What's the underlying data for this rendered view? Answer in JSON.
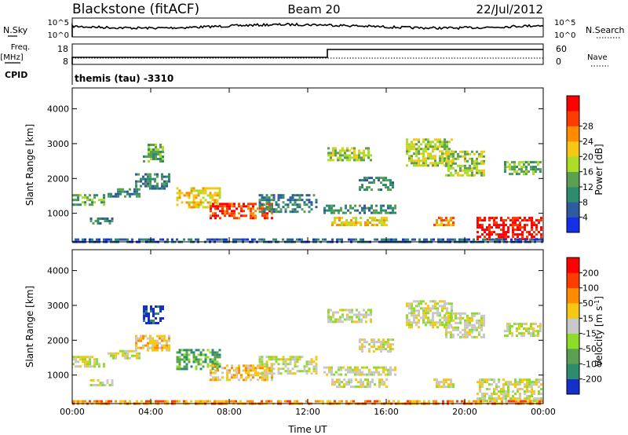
{
  "header": {
    "station": "Blackstone (fitACF)",
    "beam": "Beam 20",
    "date": "22/Jul/2012"
  },
  "noise_panel": {
    "left_label": "N.Sky",
    "right_label": "N.Search",
    "left_ticks": [
      "10^5",
      "10^0"
    ],
    "right_ticks": [
      "10^5",
      "10^0"
    ]
  },
  "freq_panel": {
    "left_label_1": "Freq.",
    "left_label_2": "[MHz]",
    "right_label": "Nave",
    "left_ticks": [
      "18",
      "8"
    ],
    "right_ticks": [
      "60",
      "0"
    ],
    "cpid_label": "CPID",
    "cpid_text": "themis (tau) -3310",
    "freq_step_hour": 13
  },
  "chart_data": [
    {
      "type": "heatmap",
      "ylabel": "Slant Range [km]",
      "xlabel": "Time UT",
      "x_range_hours": [
        0,
        24
      ],
      "y_range_km": [
        180,
        4600
      ],
      "x_tick_labels": [
        "00:00",
        "04:00",
        "08:00",
        "12:00",
        "16:00",
        "20:00",
        "00:00"
      ],
      "y_tick_labels": [
        "1000",
        "2000",
        "3000",
        "4000"
      ],
      "y_ticks_km": [
        1000,
        2000,
        3000,
        4000
      ],
      "colorbar": {
        "label": "Power [dB]",
        "tick_labels": [
          "4",
          "8",
          "12",
          "16",
          "20",
          "24",
          "28"
        ],
        "colors": [
          "#1430e6",
          "#2e5aa0",
          "#2e8c6e",
          "#5aa050",
          "#aadc28",
          "#f5c814",
          "#ff8c00",
          "#ff3c00",
          "#ff0000"
        ]
      },
      "echo_regions": [
        {
          "t0": 0.0,
          "t1": 1.6,
          "r0": 1250,
          "r1": 1550,
          "level": 3
        },
        {
          "t0": 0.9,
          "t1": 2.1,
          "r0": 700,
          "r1": 880,
          "level": 2
        },
        {
          "t0": 1.8,
          "t1": 3.4,
          "r0": 1500,
          "r1": 1720,
          "level": 2
        },
        {
          "t0": 3.2,
          "t1": 5.0,
          "r0": 1700,
          "r1": 2150,
          "level": 2
        },
        {
          "t0": 3.6,
          "t1": 4.6,
          "r0": 2500,
          "r1": 3000,
          "level": 3
        },
        {
          "t0": 5.3,
          "t1": 7.5,
          "r0": 1200,
          "r1": 1750,
          "level": 5
        },
        {
          "t0": 7.0,
          "t1": 10.2,
          "r0": 850,
          "r1": 1300,
          "level": 7
        },
        {
          "t0": 9.5,
          "t1": 12.5,
          "r0": 1050,
          "r1": 1550,
          "level": 2
        },
        {
          "t0": 12.8,
          "t1": 16.5,
          "r0": 1000,
          "r1": 1250,
          "level": 2
        },
        {
          "t0": 13.2,
          "t1": 16.0,
          "r0": 650,
          "r1": 900,
          "level": 5
        },
        {
          "t0": 13.0,
          "t1": 15.2,
          "r0": 2500,
          "r1": 2900,
          "level": 4
        },
        {
          "t0": 14.6,
          "t1": 16.4,
          "r0": 1700,
          "r1": 2050,
          "level": 2
        },
        {
          "t0": 17.0,
          "t1": 19.4,
          "r0": 2400,
          "r1": 3150,
          "level": 4
        },
        {
          "t0": 19.0,
          "t1": 21.0,
          "r0": 2100,
          "r1": 2800,
          "level": 4
        },
        {
          "t0": 18.4,
          "t1": 19.4,
          "r0": 650,
          "r1": 900,
          "level": 6
        },
        {
          "t0": 20.6,
          "t1": 23.9,
          "r0": 250,
          "r1": 900,
          "level": 8
        },
        {
          "t0": 22.0,
          "t1": 23.9,
          "r0": 2150,
          "r1": 2500,
          "level": 3
        },
        {
          "t0": 0.0,
          "t1": 24.0,
          "r0": 180,
          "r1": 280,
          "level": 1
        }
      ]
    },
    {
      "type": "heatmap",
      "ylabel": "Slant Range [km]",
      "xlabel": "Time UT",
      "x_range_hours": [
        0,
        24
      ],
      "y_range_km": [
        180,
        4600
      ],
      "x_tick_labels": [
        "00:00",
        "04:00",
        "08:00",
        "12:00",
        "16:00",
        "20:00",
        "00:00"
      ],
      "y_tick_labels": [
        "1000",
        "2000",
        "3000",
        "4000"
      ],
      "y_ticks_km": [
        1000,
        2000,
        3000,
        4000
      ],
      "colorbar": {
        "label": "Velocity",
        "label_units": "[m s",
        "label_exp": "-1",
        "label_close": "]",
        "tick_labels": [
          "200",
          "100",
          "50",
          "15",
          "-15",
          "-50",
          "-100",
          "-200"
        ],
        "colors": [
          "#1430c8",
          "#2e8c6e",
          "#5aa050",
          "#8cdc28",
          "#c8c8c8",
          "#f5c814",
          "#ff8c00",
          "#ff3c00",
          "#ff0000"
        ]
      },
      "echo_regions": [
        {
          "t0": 0.0,
          "t1": 1.6,
          "r0": 1250,
          "r1": 1550,
          "level": 4
        },
        {
          "t0": 0.9,
          "t1": 2.1,
          "r0": 700,
          "r1": 880,
          "level": 4
        },
        {
          "t0": 1.8,
          "t1": 3.4,
          "r0": 1500,
          "r1": 1720,
          "level": 4
        },
        {
          "t0": 3.2,
          "t1": 5.0,
          "r0": 1700,
          "r1": 2150,
          "level": 5
        },
        {
          "t0": 3.6,
          "t1": 4.6,
          "r0": 2500,
          "r1": 3000,
          "level": 0
        },
        {
          "t0": 5.3,
          "t1": 7.5,
          "r0": 1200,
          "r1": 1750,
          "level": 2
        },
        {
          "t0": 7.0,
          "t1": 10.2,
          "r0": 850,
          "r1": 1300,
          "level": 5
        },
        {
          "t0": 9.5,
          "t1": 12.5,
          "r0": 1050,
          "r1": 1550,
          "level": 4
        },
        {
          "t0": 12.8,
          "t1": 16.5,
          "r0": 1000,
          "r1": 1250,
          "level": 4
        },
        {
          "t0": 13.2,
          "t1": 16.0,
          "r0": 650,
          "r1": 900,
          "level": 4
        },
        {
          "t0": 13.0,
          "t1": 15.2,
          "r0": 2500,
          "r1": 2900,
          "level": 4
        },
        {
          "t0": 14.6,
          "t1": 16.4,
          "r0": 1700,
          "r1": 2050,
          "level": 4
        },
        {
          "t0": 17.0,
          "t1": 19.4,
          "r0": 2400,
          "r1": 3150,
          "level": 4
        },
        {
          "t0": 19.0,
          "t1": 21.0,
          "r0": 2100,
          "r1": 2800,
          "level": 4
        },
        {
          "t0": 18.4,
          "t1": 19.4,
          "r0": 650,
          "r1": 900,
          "level": 4
        },
        {
          "t0": 20.6,
          "t1": 23.9,
          "r0": 250,
          "r1": 900,
          "level": 4
        },
        {
          "t0": 22.0,
          "t1": 23.9,
          "r0": 2150,
          "r1": 2500,
          "level": 4
        },
        {
          "t0": 0.0,
          "t1": 24.0,
          "r0": 180,
          "r1": 280,
          "level": 6
        }
      ]
    }
  ]
}
